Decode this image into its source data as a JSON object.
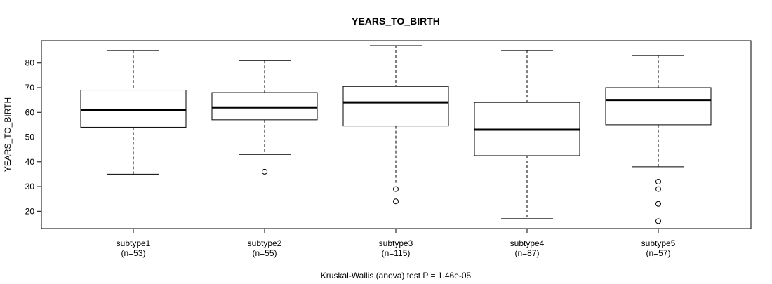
{
  "chart_data": {
    "type": "boxplot",
    "title": "YEARS_TO_BIRTH",
    "ylabel": "YEARS_TO_BIRTH",
    "xlabel": "Kruskal-Wallis (anova) test P = 1.46e-05",
    "ylim": [
      13,
      89
    ],
    "yticks": [
      20,
      30,
      40,
      50,
      60,
      70,
      80
    ],
    "categories": [
      "subtype1",
      "subtype2",
      "subtype3",
      "subtype4",
      "subtype5"
    ],
    "counts": [
      "(n=53)",
      "(n=55)",
      "(n=115)",
      "(n=87)",
      "(n=57)"
    ],
    "boxes": [
      {
        "name": "subtype1",
        "whisker_low": 35,
        "q1": 54,
        "median": 61,
        "q3": 69,
        "whisker_high": 85,
        "outliers": []
      },
      {
        "name": "subtype2",
        "whisker_low": 43,
        "q1": 57,
        "median": 62,
        "q3": 68,
        "whisker_high": 81,
        "outliers": [
          36
        ]
      },
      {
        "name": "subtype3",
        "whisker_low": 31,
        "q1": 54.5,
        "median": 64,
        "q3": 70.5,
        "whisker_high": 87,
        "outliers": [
          29,
          24
        ]
      },
      {
        "name": "subtype4",
        "whisker_low": 17,
        "q1": 42.5,
        "median": 53,
        "q3": 64,
        "whisker_high": 85,
        "outliers": []
      },
      {
        "name": "subtype5",
        "whisker_low": 38,
        "q1": 55,
        "median": 65,
        "q3": 70,
        "whisker_high": 83,
        "outliers": [
          32,
          29,
          23,
          16
        ]
      }
    ]
  }
}
